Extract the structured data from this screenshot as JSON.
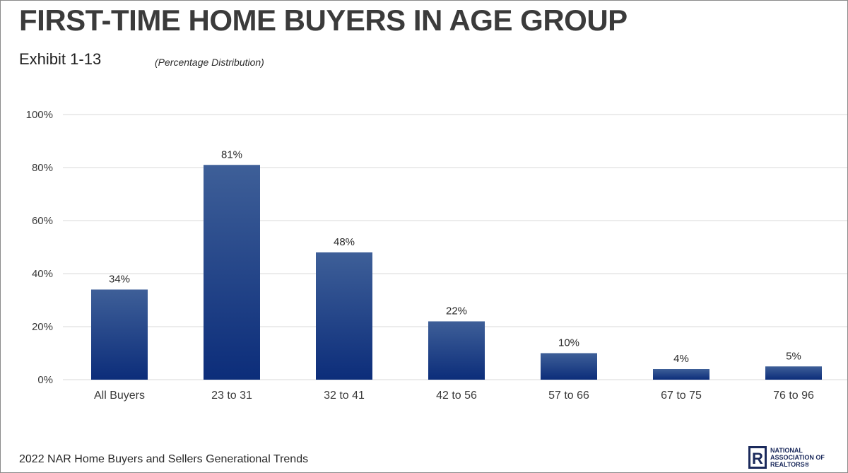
{
  "header": {
    "title": "FIRST-TIME HOME BUYERS IN AGE GROUP",
    "exhibit": "Exhibit 1-13",
    "subtitle": "(Percentage Distribution)"
  },
  "footer": {
    "source": "2022 NAR Home Buyers and Sellers Generational Trends"
  },
  "logo": {
    "lines": [
      "NATIONAL",
      "ASSOCIATION OF",
      "REALTORS®"
    ],
    "mark_letter": "R"
  },
  "colors": {
    "bar_top": "#3e5f98",
    "bar_bottom": "#0c2d7a",
    "grid": "#d9d9d9",
    "axis_text": "#3a3a3a",
    "logo": "#1b2a5c"
  },
  "chart_data": {
    "type": "bar",
    "categories": [
      "All Buyers",
      "23 to 31",
      "32 to 41",
      "42 to 56",
      "57 to 66",
      "67 to 75",
      "76 to 96"
    ],
    "values": [
      34,
      81,
      48,
      22,
      10,
      4,
      5
    ],
    "data_labels": [
      "34%",
      "81%",
      "48%",
      "22%",
      "10%",
      "4%",
      "5%"
    ],
    "ylim": [
      0,
      100
    ],
    "yticks": [
      0,
      20,
      40,
      60,
      80,
      100
    ],
    "ytick_labels": [
      "0%",
      "20%",
      "40%",
      "60%",
      "80%",
      "100%"
    ],
    "grid": true,
    "legend": "none"
  }
}
